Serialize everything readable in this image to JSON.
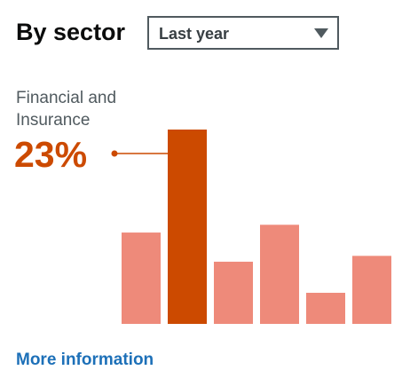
{
  "header": {
    "title": "By sector"
  },
  "filter": {
    "selected": "Last year"
  },
  "highlight": {
    "label": "Financial and Insurance",
    "value": "23%"
  },
  "chart_data": {
    "type": "bar",
    "values": [
      0.47,
      1.0,
      0.32,
      0.51,
      0.16,
      0.35
    ],
    "highlight_index": 1,
    "colors": {
      "default": "#ee8a7a",
      "highlight": "#cc4a00"
    }
  },
  "footer": {
    "link_label": "More information"
  }
}
